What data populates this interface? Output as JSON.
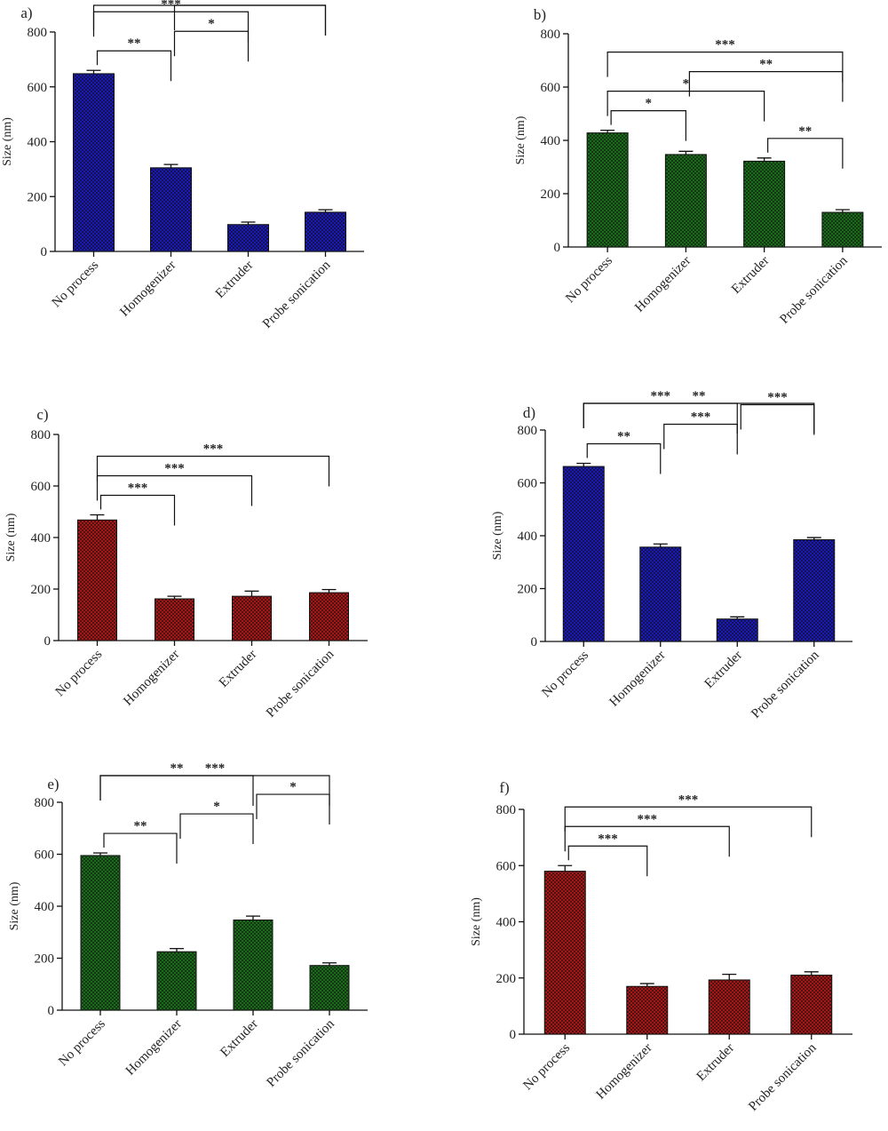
{
  "chart_data": [
    {
      "panel": "a)",
      "type": "bar",
      "color": "#1a1ab0",
      "pattern": "checker",
      "ylabel": "Size (nm)",
      "ylim": [
        0,
        800
      ],
      "yticks": [
        0,
        200,
        400,
        600,
        800
      ],
      "categories": [
        "No process",
        "Homogenizer",
        "Extruder",
        "Probe sonication"
      ],
      "values": [
        648,
        305,
        98,
        143
      ],
      "errors": [
        12,
        12,
        9,
        9
      ],
      "brackets": [
        {
          "from": 0,
          "to": 1,
          "label": "**"
        },
        {
          "from": 0,
          "to": 2,
          "label": "***"
        },
        {
          "from": 0,
          "to": 3,
          "label": "***"
        },
        {
          "from": 1,
          "to": 2,
          "label": "*"
        },
        {
          "from": 1,
          "to": 3,
          "label": "*"
        }
      ]
    },
    {
      "panel": "b)",
      "type": "bar",
      "color": "#1c6b1c",
      "pattern": "checker",
      "ylabel": "Size (nm)",
      "ylim": [
        0,
        800
      ],
      "yticks": [
        0,
        200,
        400,
        600,
        800
      ],
      "categories": [
        "No process",
        "Homogenizer",
        "Extruder",
        "Probe sonication"
      ],
      "values": [
        428,
        347,
        322,
        130
      ],
      "errors": [
        10,
        12,
        12,
        10
      ],
      "brackets": [
        {
          "from": 0,
          "to": 1,
          "label": "*"
        },
        {
          "from": 0,
          "to": 2,
          "label": "*"
        },
        {
          "from": 0,
          "to": 3,
          "label": "***"
        },
        {
          "from": 1,
          "to": 3,
          "label": "**"
        },
        {
          "from": 2,
          "to": 3,
          "label": "**"
        }
      ]
    },
    {
      "panel": "c)",
      "type": "bar",
      "color": "#a31818",
      "pattern": "checker",
      "ylabel": "Size (nm)",
      "ylim": [
        0,
        800
      ],
      "yticks": [
        0,
        200,
        400,
        600,
        800
      ],
      "categories": [
        "No process",
        "Homogenizer",
        "Extruder",
        "Probe sonication"
      ],
      "values": [
        468,
        162,
        172,
        186
      ],
      "errors": [
        20,
        10,
        20,
        12
      ],
      "brackets": [
        {
          "from": 0,
          "to": 1,
          "label": "***"
        },
        {
          "from": 0,
          "to": 2,
          "label": "***"
        },
        {
          "from": 0,
          "to": 3,
          "label": "***"
        }
      ]
    },
    {
      "panel": "d)",
      "type": "bar",
      "color": "#1a1ab0",
      "pattern": "checker",
      "ylabel": "Size (nm)",
      "ylim": [
        0,
        800
      ],
      "yticks": [
        0,
        200,
        400,
        600,
        800
      ],
      "categories": [
        "No process",
        "Homogenizer",
        "Extruder",
        "Probe sonication"
      ],
      "values": [
        662,
        357,
        85,
        385
      ],
      "errors": [
        12,
        12,
        8,
        8
      ],
      "brackets": [
        {
          "from": 0,
          "to": 1,
          "label": "**"
        },
        {
          "from": 0,
          "to": 2,
          "label": "***"
        },
        {
          "from": 0,
          "to": 3,
          "label": "**"
        },
        {
          "from": 1,
          "to": 2,
          "label": "***"
        },
        {
          "from": 2,
          "to": 3,
          "label": "***"
        }
      ]
    },
    {
      "panel": "e)",
      "type": "bar",
      "color": "#1c6b1c",
      "pattern": "checker",
      "ylabel": "Size (nm)",
      "ylim": [
        0,
        800
      ],
      "yticks": [
        0,
        200,
        400,
        600,
        800
      ],
      "categories": [
        "No process",
        "Homogenizer",
        "Extruder",
        "Probe sonication"
      ],
      "values": [
        595,
        225,
        347,
        172
      ],
      "errors": [
        10,
        12,
        15,
        10
      ],
      "brackets": [
        {
          "from": 0,
          "to": 1,
          "label": "**"
        },
        {
          "from": 0,
          "to": 2,
          "label": "**"
        },
        {
          "from": 0,
          "to": 3,
          "label": "***"
        },
        {
          "from": 1,
          "to": 2,
          "label": "*"
        },
        {
          "from": 2,
          "to": 3,
          "label": "*"
        }
      ]
    },
    {
      "panel": "f)",
      "type": "bar",
      "color": "#a31818",
      "pattern": "checker",
      "ylabel": "Size (nm)",
      "ylim": [
        0,
        800
      ],
      "yticks": [
        0,
        200,
        400,
        600,
        800
      ],
      "categories": [
        "No process",
        "Homogenizer",
        "Extruder",
        "Probe sonication"
      ],
      "values": [
        580,
        170,
        193,
        210
      ],
      "errors": [
        20,
        10,
        20,
        12
      ],
      "brackets": [
        {
          "from": 0,
          "to": 1,
          "label": "***"
        },
        {
          "from": 0,
          "to": 2,
          "label": "***"
        },
        {
          "from": 0,
          "to": 3,
          "label": "***"
        }
      ]
    }
  ]
}
